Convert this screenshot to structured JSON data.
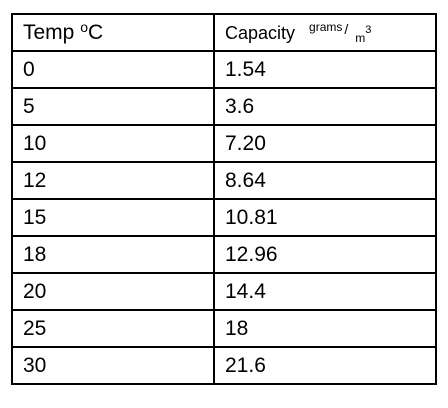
{
  "table": {
    "header": {
      "temp_label": "Temp ",
      "temp_unit_sup": "o",
      "temp_unit": "C",
      "capacity_label": "Capacity",
      "capacity_unit_num": "grams",
      "capacity_unit_slash": "/",
      "capacity_unit_den": "m",
      "capacity_unit_den_sup": "3"
    },
    "rows": [
      {
        "temp": "0",
        "capacity": "1.54"
      },
      {
        "temp": "5",
        "capacity": "3.6"
      },
      {
        "temp": "10",
        "capacity": "7.20"
      },
      {
        "temp": "12",
        "capacity": "8.64"
      },
      {
        "temp": "15",
        "capacity": "10.81"
      },
      {
        "temp": "18",
        "capacity": "12.96"
      },
      {
        "temp": "20",
        "capacity": "14.4"
      },
      {
        "temp": "25",
        "capacity": "18"
      },
      {
        "temp": "30",
        "capacity": "21.6"
      }
    ]
  }
}
